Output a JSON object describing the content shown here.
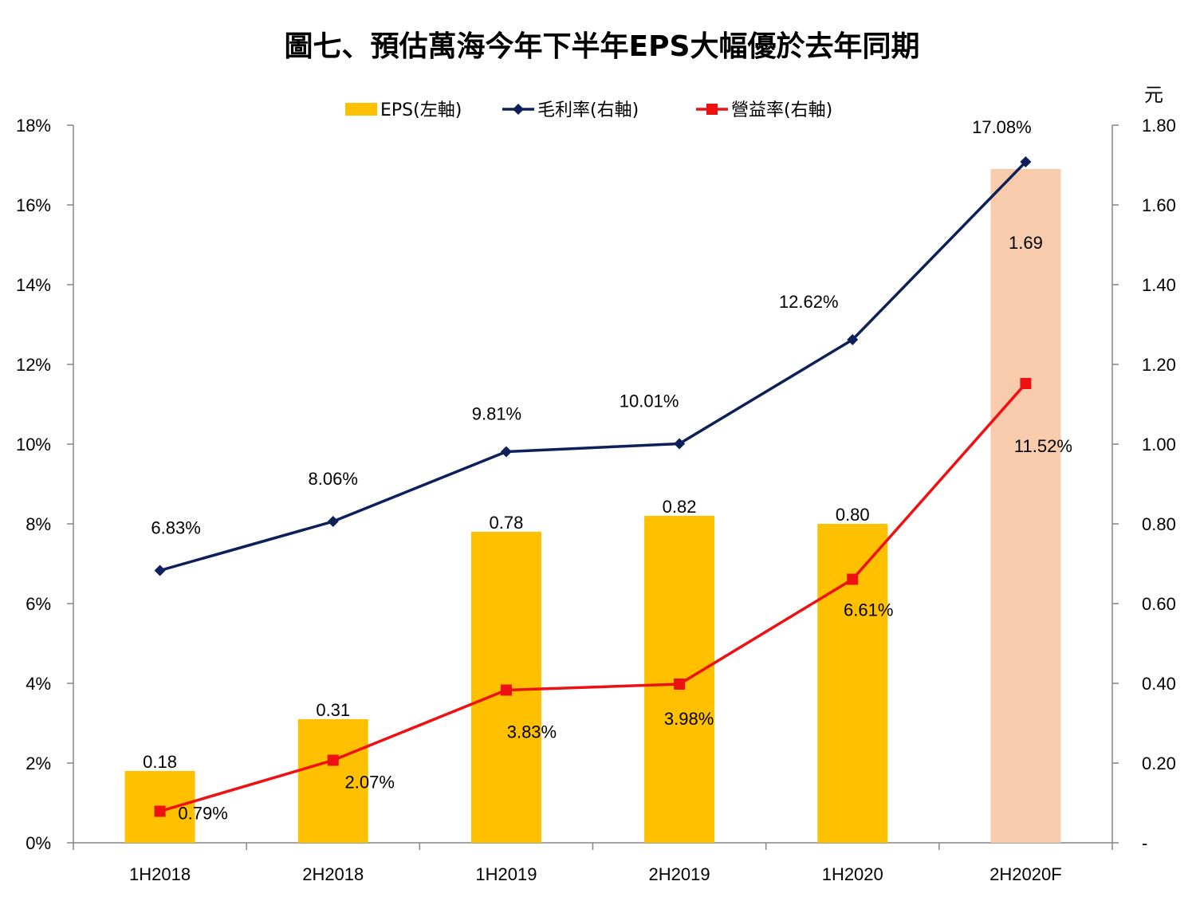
{
  "chart_data": {
    "type": "bar",
    "title": "圖七、預估萬海今年下半年EPS大幅優於去年同期",
    "categories": [
      "1H2018",
      "2H2018",
      "1H2019",
      "2H2019",
      "1H2020",
      "2H2020F"
    ],
    "left_axis": {
      "ticks": [
        "0%",
        "2%",
        "4%",
        "6%",
        "8%",
        "10%",
        "12%",
        "14%",
        "16%",
        "18%"
      ],
      "range": [
        0,
        18
      ]
    },
    "right_axis": {
      "unit": "元",
      "ticks": [
        "-",
        "0.20",
        "0.40",
        "0.60",
        "0.80",
        "1.00",
        "1.20",
        "1.40",
        "1.60",
        "1.80"
      ],
      "range": [
        0,
        1.8
      ]
    },
    "series": [
      {
        "name": "EPS(左軸)",
        "kind": "bar",
        "values": [
          0.18,
          0.31,
          0.78,
          0.82,
          0.8,
          1.69
        ],
        "labels": [
          "0.18",
          "0.31",
          "0.78",
          "0.82",
          "0.80",
          "1.69"
        ],
        "color": "#FFC000",
        "highlight_color": "#F8CBAD",
        "highlight_index": 5
      },
      {
        "name": "毛利率(右軸)",
        "kind": "line",
        "marker": "diamond",
        "values": [
          6.83,
          8.06,
          9.81,
          10.01,
          12.62,
          17.08
        ],
        "labels": [
          "6.83%",
          "8.06%",
          "9.81%",
          "10.01%",
          "12.62%",
          "17.08%"
        ],
        "color": "#0D2059"
      },
      {
        "name": "營益率(右軸)",
        "kind": "line",
        "marker": "square",
        "values": [
          0.79,
          2.07,
          3.83,
          3.98,
          6.61,
          11.52
        ],
        "labels": [
          "0.79%",
          "2.07%",
          "3.83%",
          "3.98%",
          "6.61%",
          "11.52%"
        ],
        "color": "#EE1111"
      }
    ],
    "legend_position": "top",
    "grid": false
  }
}
